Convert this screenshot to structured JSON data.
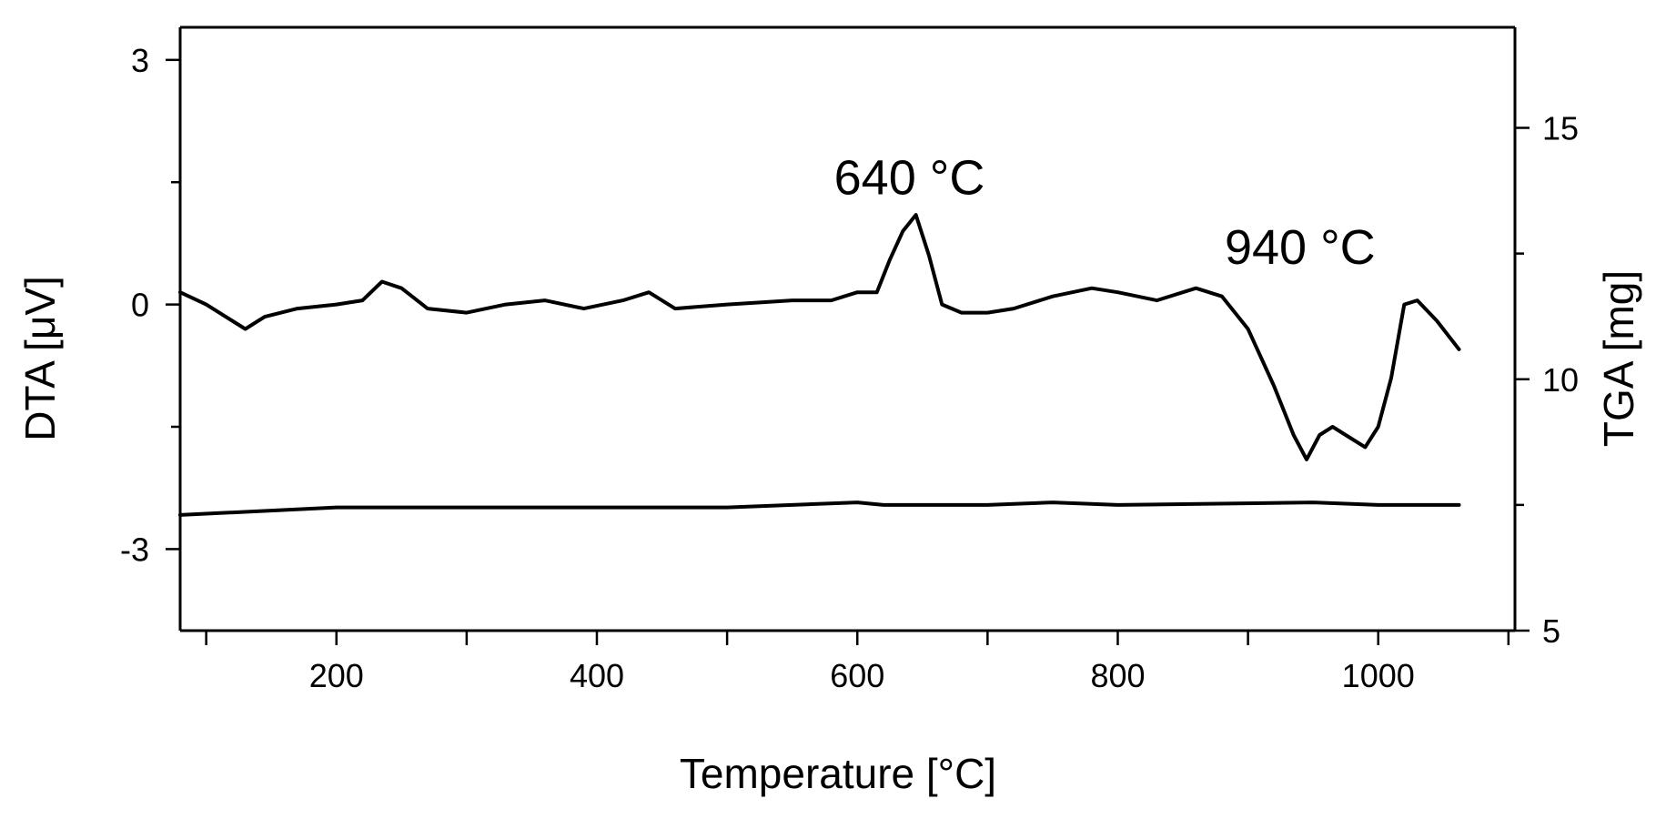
{
  "chart_data": {
    "type": "line",
    "title": "",
    "xlabel": "Temperature [°C]",
    "ylabel_left": "DTA [μV]",
    "ylabel_right": "TGA [mg]",
    "xlim": [
      80,
      1105
    ],
    "ylim_left": [
      -4,
      3.4
    ],
    "ylim_right": [
      5,
      17
    ],
    "x_ticks": [
      200,
      400,
      600,
      800,
      1000
    ],
    "x_tick_labels": [
      "200",
      "400",
      "600",
      "800",
      "1000"
    ],
    "y_left_ticks": [
      3,
      0,
      -3
    ],
    "y_left_tick_labels": [
      "3",
      "0",
      "-3"
    ],
    "y_right_ticks": [
      15,
      10,
      5
    ],
    "y_right_tick_labels": [
      "15",
      "10",
      "5"
    ],
    "grid": false,
    "legend": "none",
    "series": [
      {
        "axis": "left",
        "x": [
          80,
          100,
          120,
          130,
          145,
          170,
          200,
          220,
          235,
          250,
          270,
          300,
          330,
          360,
          390,
          420,
          440,
          460,
          500,
          550,
          580,
          600,
          615,
          625,
          635,
          645,
          655,
          665,
          680,
          700,
          720,
          750,
          780,
          800,
          830,
          860,
          880,
          900,
          920,
          935,
          945,
          955,
          965,
          975,
          990,
          1000,
          1010,
          1020,
          1030,
          1045,
          1062
        ],
        "y": [
          0.15,
          0.0,
          -0.2,
          -0.3,
          -0.15,
          -0.05,
          0.0,
          0.05,
          0.28,
          0.2,
          -0.05,
          -0.1,
          0.0,
          0.05,
          -0.05,
          0.05,
          0.15,
          -0.05,
          0.0,
          0.05,
          0.05,
          0.15,
          0.15,
          0.55,
          0.9,
          1.1,
          0.6,
          0.0,
          -0.1,
          -0.1,
          -0.05,
          0.1,
          0.2,
          0.15,
          0.05,
          0.2,
          0.1,
          -0.3,
          -1.0,
          -1.6,
          -1.9,
          -1.6,
          -1.5,
          -1.6,
          -1.75,
          -1.5,
          -0.9,
          0.0,
          0.05,
          -0.2,
          -0.55
        ]
      },
      {
        "axis": "right",
        "x": [
          80,
          200,
          400,
          500,
          600,
          620,
          700,
          750,
          800,
          950,
          1000,
          1062
        ],
        "y": [
          7.3,
          7.45,
          7.45,
          7.45,
          7.55,
          7.5,
          7.5,
          7.55,
          7.5,
          7.55,
          7.5,
          7.5
        ]
      }
    ],
    "annotations": [
      {
        "text": "640 °C",
        "x": 640,
        "y": 1.35
      },
      {
        "text": "940 °C",
        "x": 940,
        "y": 0.5
      }
    ]
  }
}
